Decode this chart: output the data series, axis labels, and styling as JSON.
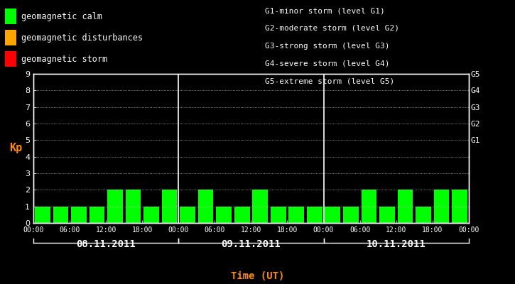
{
  "background_color": "#000000",
  "plot_bg_color": "#000000",
  "bar_color": "#00ff00",
  "text_color": "#ffffff",
  "ylabel_color": "#ff8c00",
  "xlabel_color": "#ff8c00",
  "axis_color": "#ffffff",
  "grid_color": "#ffffff",
  "days": [
    "08.11.2011",
    "09.11.2011",
    "10.11.2011"
  ],
  "kp_values": [
    [
      1,
      1,
      1,
      1,
      2,
      2,
      1,
      2
    ],
    [
      1,
      2,
      1,
      1,
      2,
      1,
      1,
      1
    ],
    [
      1,
      1,
      2,
      1,
      2,
      1,
      2,
      2
    ]
  ],
  "ylim": [
    0,
    9
  ],
  "yticks": [
    0,
    1,
    2,
    3,
    4,
    5,
    6,
    7,
    8,
    9
  ],
  "xtick_labels": [
    "00:00",
    "06:00",
    "12:00",
    "18:00",
    "00:00"
  ],
  "ylabel": "Kp",
  "xlabel": "Time (UT)",
  "legend_calm": "geomagnetic calm",
  "legend_disturbances": "geomagnetic disturbances",
  "legend_storm": "geomagnetic storm",
  "legend_calm_color": "#00ff00",
  "legend_disturbances_color": "#ffa500",
  "legend_storm_color": "#ff0000",
  "g_labels": [
    "G1-minor storm (level G1)",
    "G2-moderate storm (level G2)",
    "G3-strong storm (level G3)",
    "G4-severe storm (level G4)",
    "G5-extreme storm (level G5)"
  ],
  "num_days": 3,
  "bars_per_day": 8,
  "right_yticks": [
    5,
    6,
    7,
    8,
    9
  ],
  "right_yticklabels": [
    "G1",
    "G2",
    "G3",
    "G4",
    "G5"
  ]
}
